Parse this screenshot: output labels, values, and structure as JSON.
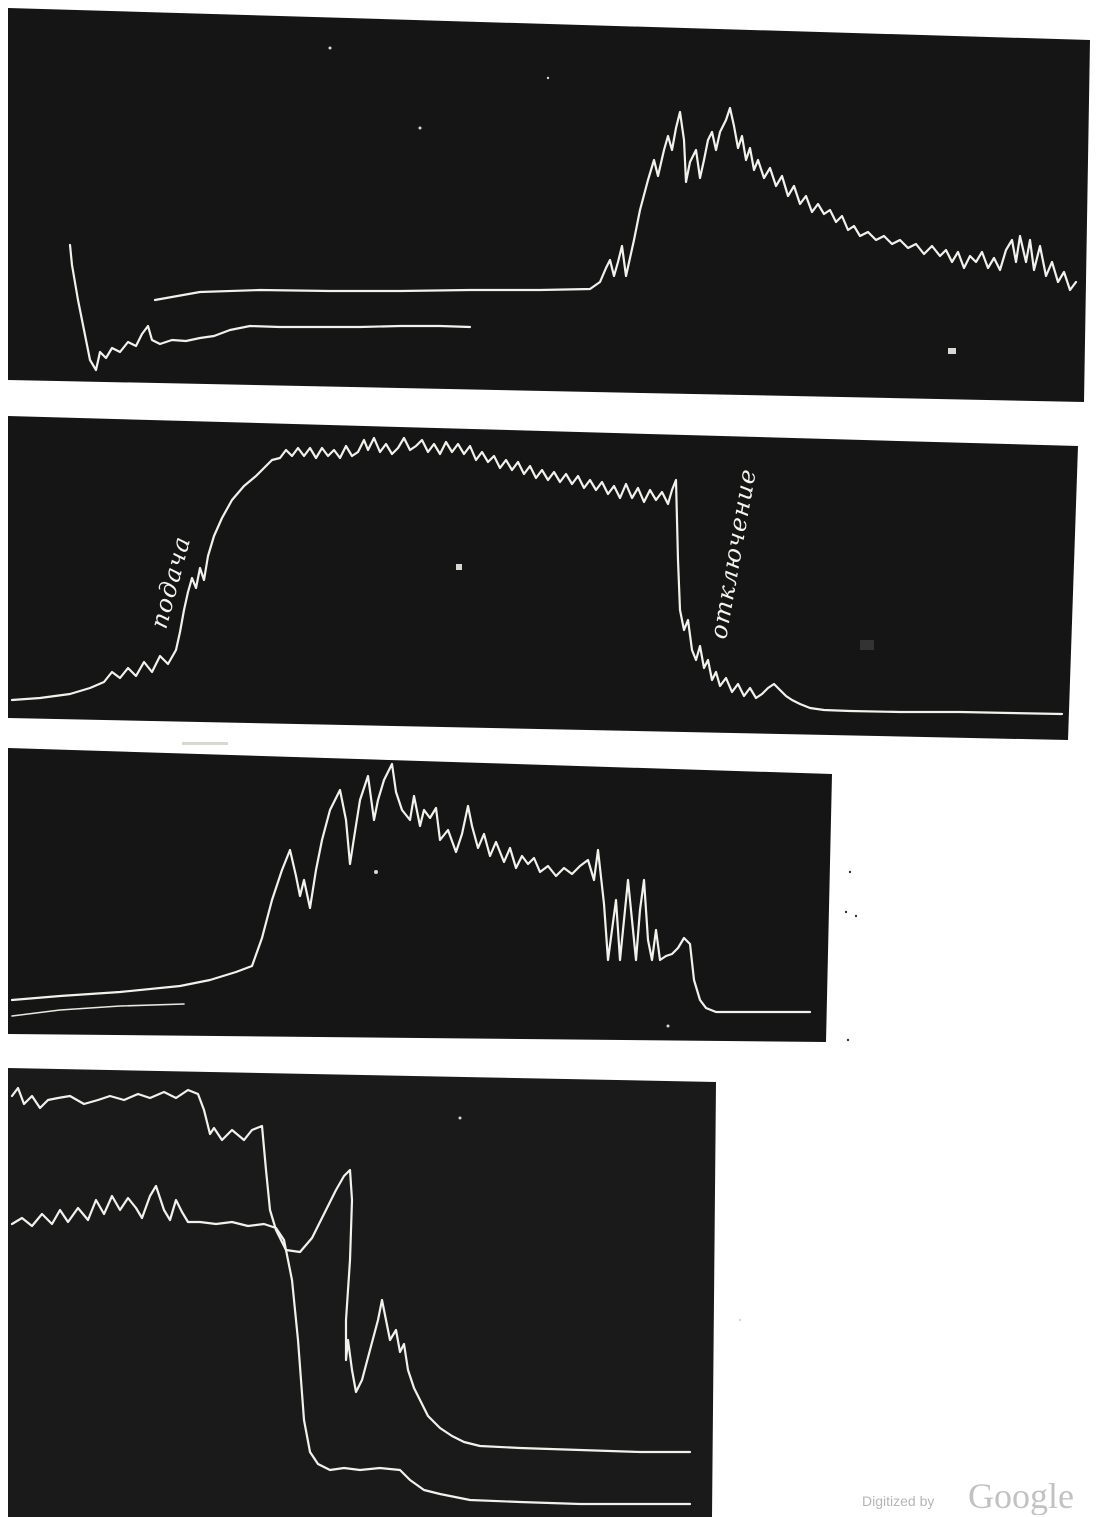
{
  "plate": {
    "panels": [
      {
        "label": "",
        "annotations": []
      },
      {
        "label": "",
        "annotations": [
          "подача",
          "отключение"
        ]
      },
      {
        "label": "",
        "annotations": []
      },
      {
        "label": "",
        "annotations": []
      }
    ]
  },
  "watermark": {
    "prefix": "Digitized by",
    "brand": "Google"
  }
}
